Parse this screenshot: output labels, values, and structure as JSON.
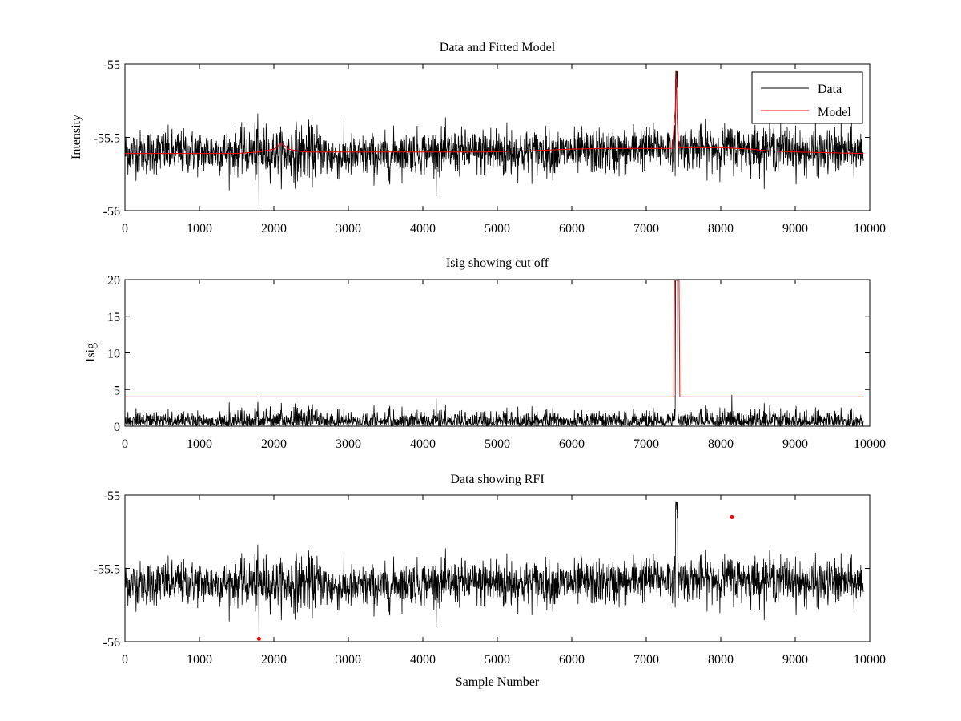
{
  "figure": {
    "background": "#ffffff"
  },
  "colors": {
    "data": "#000000",
    "model": "#ff0000",
    "axis": "#000000"
  },
  "chart_data": [
    {
      "id": "top",
      "type": "line",
      "title": "Data and Fitted Model",
      "xlabel": "",
      "ylabel": "Intensity",
      "xlim": [
        0,
        10000
      ],
      "ylim": [
        -56,
        -55
      ],
      "xticks": [
        0,
        1000,
        2000,
        3000,
        4000,
        5000,
        6000,
        7000,
        8000,
        9000,
        10000
      ],
      "xtick_labels": [
        "0",
        "1000",
        "2000",
        "3000",
        "4000",
        "5000",
        "6000",
        "7000",
        "8000",
        "9000",
        "10000"
      ],
      "yticks": [
        -56,
        -55.5,
        -55
      ],
      "ytick_labels": [
        "-56",
        "-55.5",
        "-55"
      ],
      "legend": {
        "position": "top-right",
        "entries": [
          "Data",
          "Model"
        ]
      },
      "series": [
        {
          "name": "Data",
          "color": "#000000",
          "kind": "noise",
          "n_samples": 9920,
          "baseline": -55.6,
          "amplitude": 0.1,
          "notes": "dense noisy signal; spike to about -55.05 near sample 7400, dips near 1800"
        },
        {
          "name": "Model",
          "color": "#ff0000",
          "x": [
            0,
            1500,
            1800,
            2000,
            2100,
            2200,
            2400,
            3000,
            4000,
            4800,
            5500,
            6000,
            6500,
            7000,
            7350,
            7390,
            7400,
            7410,
            7430,
            7450,
            7500,
            8000,
            8400,
            8600,
            9000,
            9920
          ],
          "y": [
            -55.61,
            -55.61,
            -55.6,
            -55.58,
            -55.54,
            -55.58,
            -55.6,
            -55.6,
            -55.6,
            -55.6,
            -55.59,
            -55.58,
            -55.575,
            -55.575,
            -55.575,
            -55.3,
            -55.05,
            -55.3,
            -55.575,
            -55.57,
            -55.57,
            -55.57,
            -55.58,
            -55.59,
            -55.6,
            -55.61
          ]
        }
      ]
    },
    {
      "id": "middle",
      "type": "line",
      "title": "Isig showing cut off",
      "xlabel": "",
      "ylabel": "Isig",
      "xlim": [
        0,
        10000
      ],
      "ylim": [
        0,
        20
      ],
      "xticks": [
        0,
        1000,
        2000,
        3000,
        4000,
        5000,
        6000,
        7000,
        8000,
        9000,
        10000
      ],
      "xtick_labels": [
        "0",
        "1000",
        "2000",
        "3000",
        "4000",
        "5000",
        "6000",
        "7000",
        "8000",
        "9000",
        "10000"
      ],
      "yticks": [
        0,
        5,
        10,
        15,
        20
      ],
      "ytick_labels": [
        "0",
        "5",
        "10",
        "15",
        "20"
      ],
      "series": [
        {
          "name": "Isig",
          "color": "#000000",
          "kind": "noise",
          "n_samples": 9920,
          "baseline": 0.8,
          "amplitude": 0.8,
          "notes": "absolute deviation, occasional peaks to about 4 near 1800 and 8150"
        },
        {
          "name": "Cut off",
          "color": "#ff0000",
          "x": [
            0,
            7370,
            7380,
            7440,
            7450,
            9920
          ],
          "y": [
            4,
            4,
            20,
            20,
            4,
            4
          ]
        }
      ]
    },
    {
      "id": "bottom",
      "type": "line",
      "title": "Data showing RFI",
      "xlabel": "Sample Number",
      "ylabel": "",
      "xlim": [
        0,
        10000
      ],
      "ylim": [
        -56,
        -55
      ],
      "xticks": [
        0,
        1000,
        2000,
        3000,
        4000,
        5000,
        6000,
        7000,
        8000,
        9000,
        10000
      ],
      "xtick_labels": [
        "0",
        "1000",
        "2000",
        "3000",
        "4000",
        "5000",
        "6000",
        "7000",
        "8000",
        "9000",
        "10000"
      ],
      "yticks": [
        -56,
        -55.5,
        -55
      ],
      "ytick_labels": [
        "-56",
        "-55.5",
        "-55"
      ],
      "series": [
        {
          "name": "Data",
          "color": "#000000",
          "kind": "noise",
          "n_samples": 9920,
          "baseline": -55.6,
          "amplitude": 0.1,
          "notes": "same data as top panel"
        },
        {
          "name": "RFI",
          "color": "#ff0000",
          "kind": "markers",
          "x": [
            1800,
            8150
          ],
          "y": [
            -55.98,
            -55.15
          ]
        }
      ]
    }
  ]
}
